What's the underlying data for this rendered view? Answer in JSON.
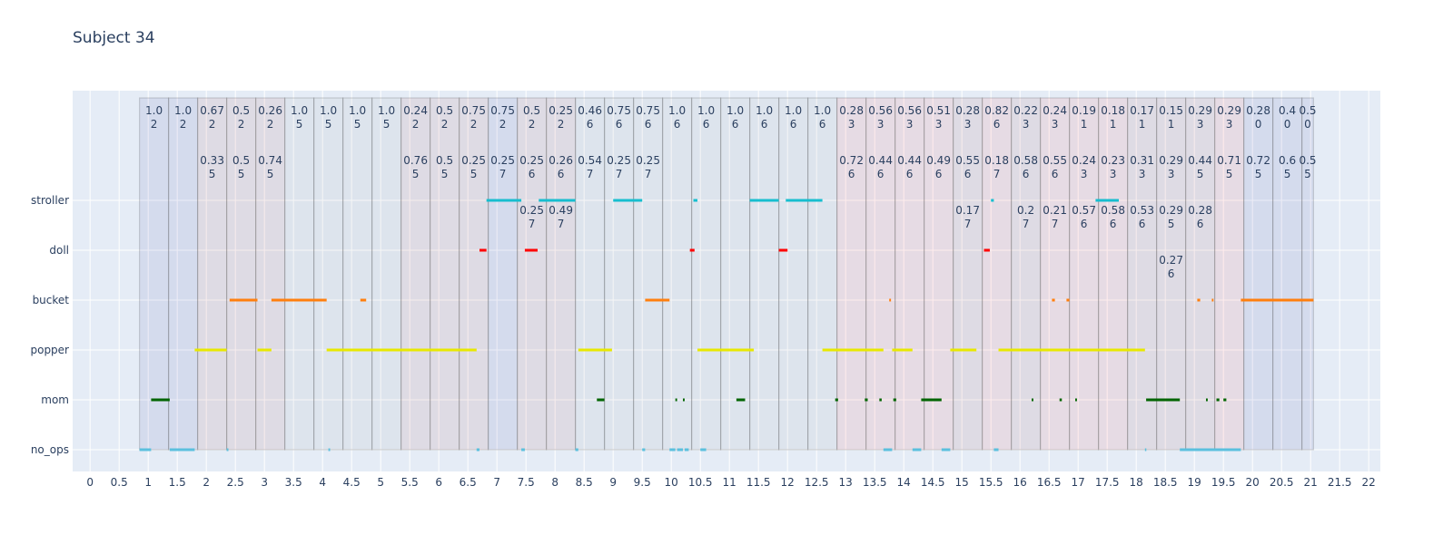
{
  "chart_data": {
    "type": "gantt",
    "title": "Subject 34",
    "categories": [
      "no_ops",
      "mom",
      "popper",
      "bucket",
      "doll",
      "stroller"
    ],
    "x_ticks": [
      "0",
      "0.5",
      "1",
      "1.5",
      "2",
      "2.5",
      "3",
      "3.5",
      "4",
      "4.5",
      "5",
      "5.5",
      "6",
      "6.5",
      "7",
      "7.5",
      "8",
      "8.5",
      "9",
      "9.5",
      "10",
      "10.5",
      "11",
      "11.5",
      "12",
      "12.5",
      "13",
      "13.5",
      "14",
      "14.5",
      "15",
      "15.5",
      "16",
      "16.5",
      "17",
      "17.5",
      "18",
      "18.5",
      "19",
      "19.5",
      "20",
      "20.5",
      "21",
      "21.5",
      "22"
    ],
    "xlim": [
      -0.3,
      22.2
    ],
    "grid": true,
    "series": [
      {
        "category": "stroller",
        "color": "#17becf",
        "intervals": [
          [
            6.82,
            7.42
          ],
          [
            7.72,
            8.35
          ],
          [
            9.0,
            9.5
          ],
          [
            10.38,
            10.45
          ],
          [
            11.35,
            11.85
          ],
          [
            11.97,
            12.6
          ],
          [
            15.5,
            15.55
          ],
          [
            17.3,
            17.7
          ]
        ]
      },
      {
        "category": "doll",
        "color": "#ff0000",
        "intervals": [
          [
            6.7,
            6.82
          ],
          [
            7.48,
            7.7
          ],
          [
            10.32,
            10.4
          ],
          [
            11.85,
            12.0
          ],
          [
            15.38,
            15.48
          ]
        ]
      },
      {
        "category": "bucket",
        "color": "#ff7f0e",
        "intervals": [
          [
            2.4,
            2.88
          ],
          [
            3.12,
            4.07
          ],
          [
            4.65,
            4.75
          ],
          [
            9.55,
            9.97
          ],
          [
            13.75,
            13.78
          ],
          [
            16.55,
            16.6
          ],
          [
            16.8,
            16.85
          ],
          [
            19.05,
            19.1
          ],
          [
            19.3,
            19.33
          ],
          [
            19.8,
            21.05
          ]
        ]
      },
      {
        "category": "popper",
        "color": "#e8e800",
        "intervals": [
          [
            1.8,
            2.35
          ],
          [
            2.88,
            3.12
          ],
          [
            4.07,
            6.65
          ],
          [
            8.4,
            8.98
          ],
          [
            10.45,
            11.42
          ],
          [
            12.6,
            13.65
          ],
          [
            13.8,
            14.15
          ],
          [
            14.8,
            15.25
          ],
          [
            15.63,
            18.15
          ]
        ]
      },
      {
        "category": "mom",
        "color": "#006400",
        "intervals": [
          [
            1.05,
            1.37
          ],
          [
            8.72,
            8.85
          ],
          [
            10.07,
            10.1
          ],
          [
            10.2,
            10.23
          ],
          [
            11.12,
            11.27
          ],
          [
            12.82,
            12.87
          ],
          [
            13.33,
            13.38
          ],
          [
            13.58,
            13.62
          ],
          [
            13.82,
            13.87
          ],
          [
            14.3,
            14.65
          ],
          [
            16.2,
            16.23
          ],
          [
            16.68,
            16.72
          ],
          [
            16.95,
            16.98
          ],
          [
            18.17,
            18.75
          ],
          [
            19.2,
            19.23
          ],
          [
            19.38,
            19.43
          ],
          [
            19.5,
            19.55
          ]
        ]
      },
      {
        "category": "no_ops",
        "color": "#5bc0de",
        "intervals": [
          [
            0.85,
            1.05
          ],
          [
            1.37,
            1.8
          ],
          [
            2.35,
            2.38
          ],
          [
            4.1,
            4.13
          ],
          [
            6.65,
            6.7
          ],
          [
            7.42,
            7.48
          ],
          [
            8.35,
            8.4
          ],
          [
            9.5,
            9.55
          ],
          [
            9.97,
            10.07
          ],
          [
            10.1,
            10.2
          ],
          [
            10.23,
            10.3
          ],
          [
            10.5,
            10.6
          ],
          [
            13.65,
            13.8
          ],
          [
            14.15,
            14.3
          ],
          [
            14.65,
            14.8
          ],
          [
            15.55,
            15.63
          ],
          [
            18.15,
            18.17
          ],
          [
            18.75,
            19.8
          ]
        ]
      }
    ],
    "segments": [
      {
        "start": 0.85,
        "end": 1.35,
        "color": "#000080",
        "labels": [
          [
            "1.0",
            "2"
          ]
        ]
      },
      {
        "start": 1.35,
        "end": 1.85,
        "color": "#000080",
        "labels": [
          [
            "1.0",
            "2"
          ]
        ]
      },
      {
        "start": 1.85,
        "end": 2.35,
        "color": "#8b0000",
        "labels": [
          [
            "0.67",
            "2"
          ],
          [
            "0.33",
            "5"
          ]
        ]
      },
      {
        "start": 2.35,
        "end": 2.85,
        "color": "#8b0000",
        "labels": [
          [
            "0.5",
            "2"
          ],
          [
            "0.5",
            "5"
          ]
        ]
      },
      {
        "start": 2.85,
        "end": 3.35,
        "color": "#8b0000",
        "labels": [
          [
            "0.26",
            "2"
          ],
          [
            "0.74",
            "5"
          ]
        ]
      },
      {
        "start": 3.35,
        "end": 3.85,
        "color": "#7f7f7f",
        "labels": [
          [
            "1.0",
            "5"
          ]
        ]
      },
      {
        "start": 3.85,
        "end": 4.35,
        "color": "#7f7f7f",
        "labels": [
          [
            "1.0",
            "5"
          ]
        ]
      },
      {
        "start": 4.35,
        "end": 4.85,
        "color": "#7f7f7f",
        "labels": [
          [
            "1.0",
            "5"
          ]
        ]
      },
      {
        "start": 4.85,
        "end": 5.35,
        "color": "#7f7f7f",
        "labels": [
          [
            "1.0",
            "5"
          ]
        ]
      },
      {
        "start": 5.35,
        "end": 5.85,
        "color": "#8b0000",
        "labels": [
          [
            "0.24",
            "2"
          ],
          [
            "0.76",
            "5"
          ]
        ]
      },
      {
        "start": 5.85,
        "end": 6.35,
        "color": "#8b0000",
        "labels": [
          [
            "0.5",
            "2"
          ],
          [
            "0.5",
            "5"
          ]
        ]
      },
      {
        "start": 6.35,
        "end": 6.85,
        "color": "#8b0000",
        "labels": [
          [
            "0.75",
            "2"
          ],
          [
            "0.25",
            "5"
          ]
        ]
      },
      {
        "start": 6.85,
        "end": 7.35,
        "color": "#000080",
        "labels": [
          [
            "0.75",
            "2"
          ],
          [
            "0.25",
            "7"
          ]
        ]
      },
      {
        "start": 7.35,
        "end": 7.85,
        "color": "#8b0000",
        "labels": [
          [
            "0.5",
            "2"
          ],
          [
            "0.25",
            "6"
          ],
          [
            "0.25",
            "7"
          ]
        ]
      },
      {
        "start": 7.85,
        "end": 8.35,
        "color": "#8b0000",
        "labels": [
          [
            "0.25",
            "2"
          ],
          [
            "0.26",
            "6"
          ],
          [
            "0.49",
            "7"
          ]
        ]
      },
      {
        "start": 8.35,
        "end": 8.85,
        "color": "#7f7f7f",
        "labels": [
          [
            "0.46",
            "6"
          ],
          [
            "0.54",
            "7"
          ]
        ]
      },
      {
        "start": 8.85,
        "end": 9.35,
        "color": "#7f7f7f",
        "labels": [
          [
            "0.75",
            "6"
          ],
          [
            "0.25",
            "7"
          ]
        ]
      },
      {
        "start": 9.35,
        "end": 9.85,
        "color": "#7f7f7f",
        "labels": [
          [
            "0.75",
            "6"
          ],
          [
            "0.25",
            "7"
          ]
        ]
      },
      {
        "start": 9.85,
        "end": 10.35,
        "color": "#7f7f7f",
        "labels": [
          [
            "1.0",
            "6"
          ]
        ]
      },
      {
        "start": 10.35,
        "end": 10.85,
        "color": "#7f7f7f",
        "labels": [
          [
            "1.0",
            "6"
          ]
        ]
      },
      {
        "start": 10.85,
        "end": 11.35,
        "color": "#7f7f7f",
        "labels": [
          [
            "1.0",
            "6"
          ]
        ]
      },
      {
        "start": 11.35,
        "end": 11.85,
        "color": "#7f7f7f",
        "labels": [
          [
            "1.0",
            "6"
          ]
        ]
      },
      {
        "start": 11.85,
        "end": 12.35,
        "color": "#7f7f7f",
        "labels": [
          [
            "1.0",
            "6"
          ]
        ]
      },
      {
        "start": 12.35,
        "end": 12.85,
        "color": "#7f7f7f",
        "labels": [
          [
            "1.0",
            "6"
          ]
        ]
      },
      {
        "start": 12.85,
        "end": 13.35,
        "color": "#ff0000",
        "labels": [
          [
            "0.28",
            "3"
          ],
          [
            "0.72",
            "6"
          ]
        ]
      },
      {
        "start": 13.35,
        "end": 13.85,
        "color": "#ff0000",
        "labels": [
          [
            "0.56",
            "3"
          ],
          [
            "0.44",
            "6"
          ]
        ]
      },
      {
        "start": 13.85,
        "end": 14.35,
        "color": "#ff0000",
        "labels": [
          [
            "0.56",
            "3"
          ],
          [
            "0.44",
            "6"
          ]
        ]
      },
      {
        "start": 14.35,
        "end": 14.85,
        "color": "#ff0000",
        "labels": [
          [
            "0.51",
            "3"
          ],
          [
            "0.49",
            "6"
          ]
        ]
      },
      {
        "start": 14.85,
        "end": 15.35,
        "color": "#8b0000",
        "labels": [
          [
            "0.28",
            "3"
          ],
          [
            "0.55",
            "6"
          ],
          [
            "0.17",
            "7"
          ]
        ]
      },
      {
        "start": 15.35,
        "end": 15.85,
        "color": "#ff0000",
        "labels": [
          [
            "0.82",
            "6"
          ],
          [
            "0.18",
            "7"
          ]
        ]
      },
      {
        "start": 15.85,
        "end": 16.35,
        "color": "#8b0000",
        "labels": [
          [
            "0.22",
            "3"
          ],
          [
            "0.58",
            "6"
          ],
          [
            "0.2",
            "7"
          ]
        ]
      },
      {
        "start": 16.35,
        "end": 16.85,
        "color": "#ff0000",
        "labels": [
          [
            "0.24",
            "3"
          ],
          [
            "0.55",
            "6"
          ],
          [
            "0.21",
            "7"
          ]
        ]
      },
      {
        "start": 16.85,
        "end": 17.35,
        "color": "#ff0000",
        "labels": [
          [
            "0.19",
            "1"
          ],
          [
            "0.24",
            "3"
          ],
          [
            "0.57",
            "6"
          ]
        ]
      },
      {
        "start": 17.35,
        "end": 17.85,
        "color": "#ff0000",
        "labels": [
          [
            "0.18",
            "1"
          ],
          [
            "0.23",
            "3"
          ],
          [
            "0.58",
            "6"
          ]
        ]
      },
      {
        "start": 17.85,
        "end": 18.35,
        "color": "#8b0000",
        "labels": [
          [
            "0.17",
            "1"
          ],
          [
            "0.31",
            "3"
          ],
          [
            "0.53",
            "6"
          ]
        ]
      },
      {
        "start": 18.35,
        "end": 18.85,
        "color": "#8b0000",
        "labels": [
          [
            "0.15",
            "1"
          ],
          [
            "0.29",
            "3"
          ],
          [
            "0.29",
            "5"
          ],
          [
            "0.27",
            "6"
          ]
        ]
      },
      {
        "start": 18.85,
        "end": 19.35,
        "color": "#8b0000",
        "labels": [
          [
            "0.29",
            "3"
          ],
          [
            "0.44",
            "5"
          ],
          [
            "0.28",
            "6"
          ]
        ]
      },
      {
        "start": 19.35,
        "end": 19.85,
        "color": "#ff0000",
        "labels": [
          [
            "0.29",
            "3"
          ],
          [
            "0.71",
            "5"
          ]
        ]
      },
      {
        "start": 19.85,
        "end": 20.35,
        "color": "#000080",
        "labels": [
          [
            "0.28",
            "0"
          ],
          [
            "0.72",
            "5"
          ]
        ]
      },
      {
        "start": 20.35,
        "end": 20.85,
        "color": "#000080",
        "labels": [
          [
            "0.4",
            "0"
          ],
          [
            "0.6",
            "5"
          ]
        ]
      },
      {
        "start": 20.85,
        "end": 21.05,
        "color": "#000080",
        "labels": [
          [
            "0.5",
            "0"
          ],
          [
            "0.5",
            "5"
          ]
        ]
      }
    ]
  }
}
